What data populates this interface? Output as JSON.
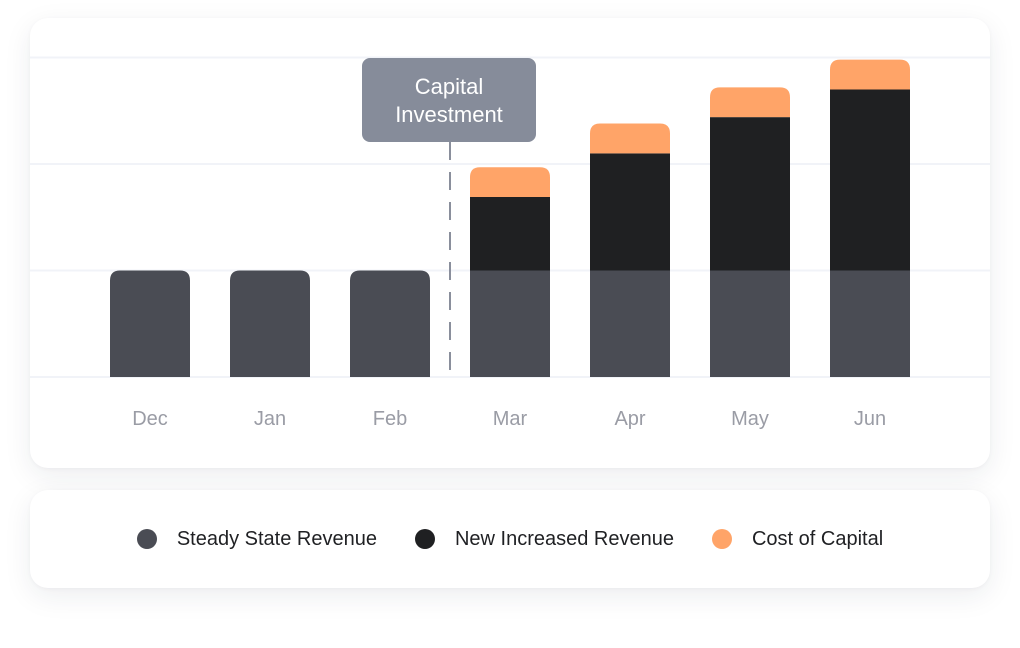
{
  "chart_data": {
    "type": "bar",
    "stacked": true,
    "title": "",
    "xlabel": "",
    "ylabel": "",
    "ylim": [
      0,
      3
    ],
    "grid": true,
    "categories": [
      "Dec",
      "Jan",
      "Feb",
      "Mar",
      "Apr",
      "May",
      "Jun"
    ],
    "series": [
      {
        "name": "Steady State Revenue",
        "color": "#4a4c54",
        "values": [
          1.0,
          1.0,
          1.0,
          1.0,
          1.0,
          1.0,
          1.0
        ]
      },
      {
        "name": "New Increased Revenue",
        "color": "#1f2022",
        "values": [
          0,
          0,
          0,
          0.69,
          1.1,
          1.44,
          1.7
        ]
      },
      {
        "name": "Cost of Capital",
        "color": "#ffa468",
        "values": [
          0,
          0,
          0,
          0.28,
          0.28,
          0.28,
          0.28
        ]
      }
    ],
    "annotation": {
      "label_line1": "Capital",
      "label_line2": "Investment",
      "position_between": [
        "Feb",
        "Mar"
      ],
      "style": "dashed-vertical-line"
    },
    "legend_placement": "bottom"
  },
  "legend": {
    "items": [
      {
        "label": "Steady State Revenue",
        "color": "#4a4c54"
      },
      {
        "label": "New Increased Revenue",
        "color": "#1f2022"
      },
      {
        "label": "Cost of Capital",
        "color": "#ffa468"
      }
    ]
  }
}
